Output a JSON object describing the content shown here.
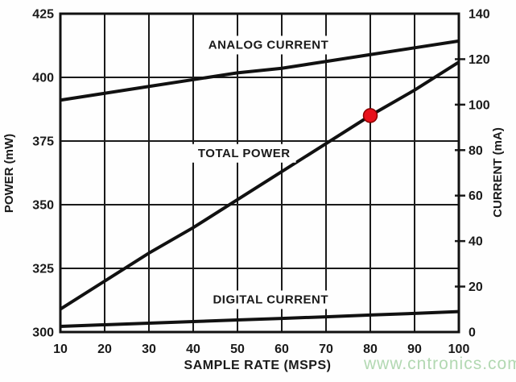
{
  "watermark": {
    "text": "www.cntronics.com"
  },
  "colors": {
    "background": "#fefefe",
    "line": "#111111",
    "grid": "#1a1a1a",
    "border": "#111111",
    "text": "#1a1a1a",
    "marker_fill": "#e8111c",
    "marker_stroke": "#8b0000",
    "watermark": "#b2d8b2"
  },
  "chart_data": {
    "type": "line",
    "title": "",
    "xlabel": "SAMPLE RATE (MSPS)",
    "ylabel_left": "POWER (mW)",
    "ylabel_right": "CURRENT (mA)",
    "xlim": [
      10,
      100
    ],
    "ylim_left": [
      300,
      425
    ],
    "ylim_right": [
      0,
      140
    ],
    "x_ticks": [
      10,
      20,
      30,
      40,
      50,
      60,
      70,
      80,
      90,
      100
    ],
    "y_left_ticks": [
      300,
      325,
      350,
      375,
      400,
      425
    ],
    "y_right_ticks": [
      0,
      20,
      40,
      60,
      80,
      100,
      120,
      140
    ],
    "grid": true,
    "legend_position": "inline-labels",
    "x": [
      10,
      20,
      30,
      40,
      50,
      60,
      70,
      80,
      90,
      100
    ],
    "series": [
      {
        "name": "ANALOG CURRENT",
        "axis": "right",
        "unit": "mA",
        "values": [
          102,
          105,
          108,
          111,
          114,
          116,
          119,
          122,
          125,
          128
        ],
        "label_anchor": {
          "x": 57,
          "y_mW": 412.5
        }
      },
      {
        "name": "TOTAL POWER",
        "axis": "left",
        "unit": "mW",
        "values": [
          309,
          320,
          331,
          341,
          352,
          363,
          374,
          385,
          395,
          406
        ],
        "label_anchor": {
          "x": 51.5,
          "y_mW": 370
        }
      },
      {
        "name": "DIGITAL CURRENT",
        "axis": "right",
        "unit": "mA",
        "values": [
          2.5,
          3.2,
          3.9,
          4.6,
          5.3,
          6.0,
          6.7,
          7.5,
          8.2,
          9.0
        ],
        "label_anchor": {
          "x": 57.5,
          "y_mW": 312.5
        }
      }
    ],
    "marker": {
      "series": "TOTAL POWER",
      "x": 80,
      "value_mW": 385,
      "value_mA_equiv": 96
    }
  }
}
